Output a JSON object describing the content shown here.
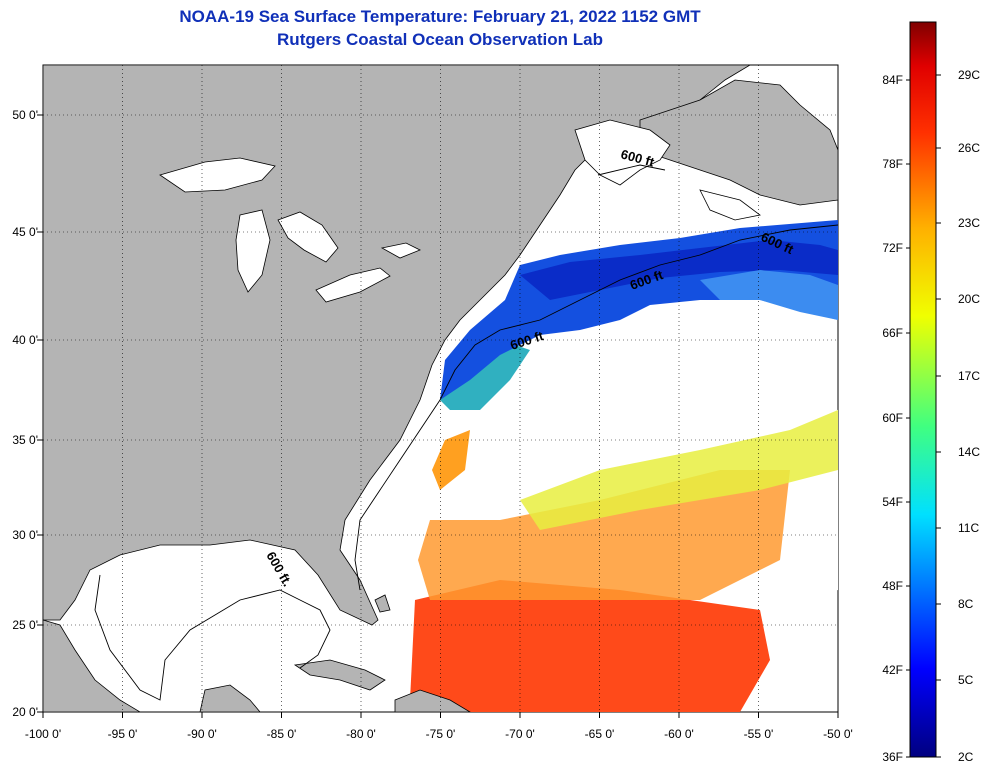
{
  "header": {
    "title": "NOAA-19 Sea Surface Temperature:  February 21, 2022 1152 GMT",
    "subtitle": "Rutgers Coastal Ocean Observation Lab"
  },
  "map": {
    "lon_range": [
      -100,
      -50
    ],
    "lat_range": [
      20,
      52
    ],
    "lon_ticks": [
      "-100 0'",
      "-95 0'",
      "-90 0'",
      "-85 0'",
      "-80 0'",
      "-75 0'",
      "-70 0'",
      "-65 0'",
      "-60 0'",
      "-55 0'",
      "-50 0'"
    ],
    "lat_ticks": [
      "20 0'",
      "25 0'",
      "30 0'",
      "35 0'",
      "40 0'",
      "45 0'",
      "50 0'"
    ],
    "contour_labels": [
      "600 ft.",
      "600 ft",
      "600 ft",
      "600 ft",
      "600 ft"
    ],
    "land_color": "#b4b4b4",
    "grid": true
  },
  "colorbar": {
    "fahrenheit_labels": [
      "84F",
      "78F",
      "72F",
      "66F",
      "60F",
      "54F",
      "48F",
      "42F",
      "36F"
    ],
    "celsius_labels": [
      "29C",
      "26C",
      "23C",
      "20C",
      "17C",
      "14C",
      "11C",
      "8C",
      "5C",
      "2C"
    ]
  }
}
